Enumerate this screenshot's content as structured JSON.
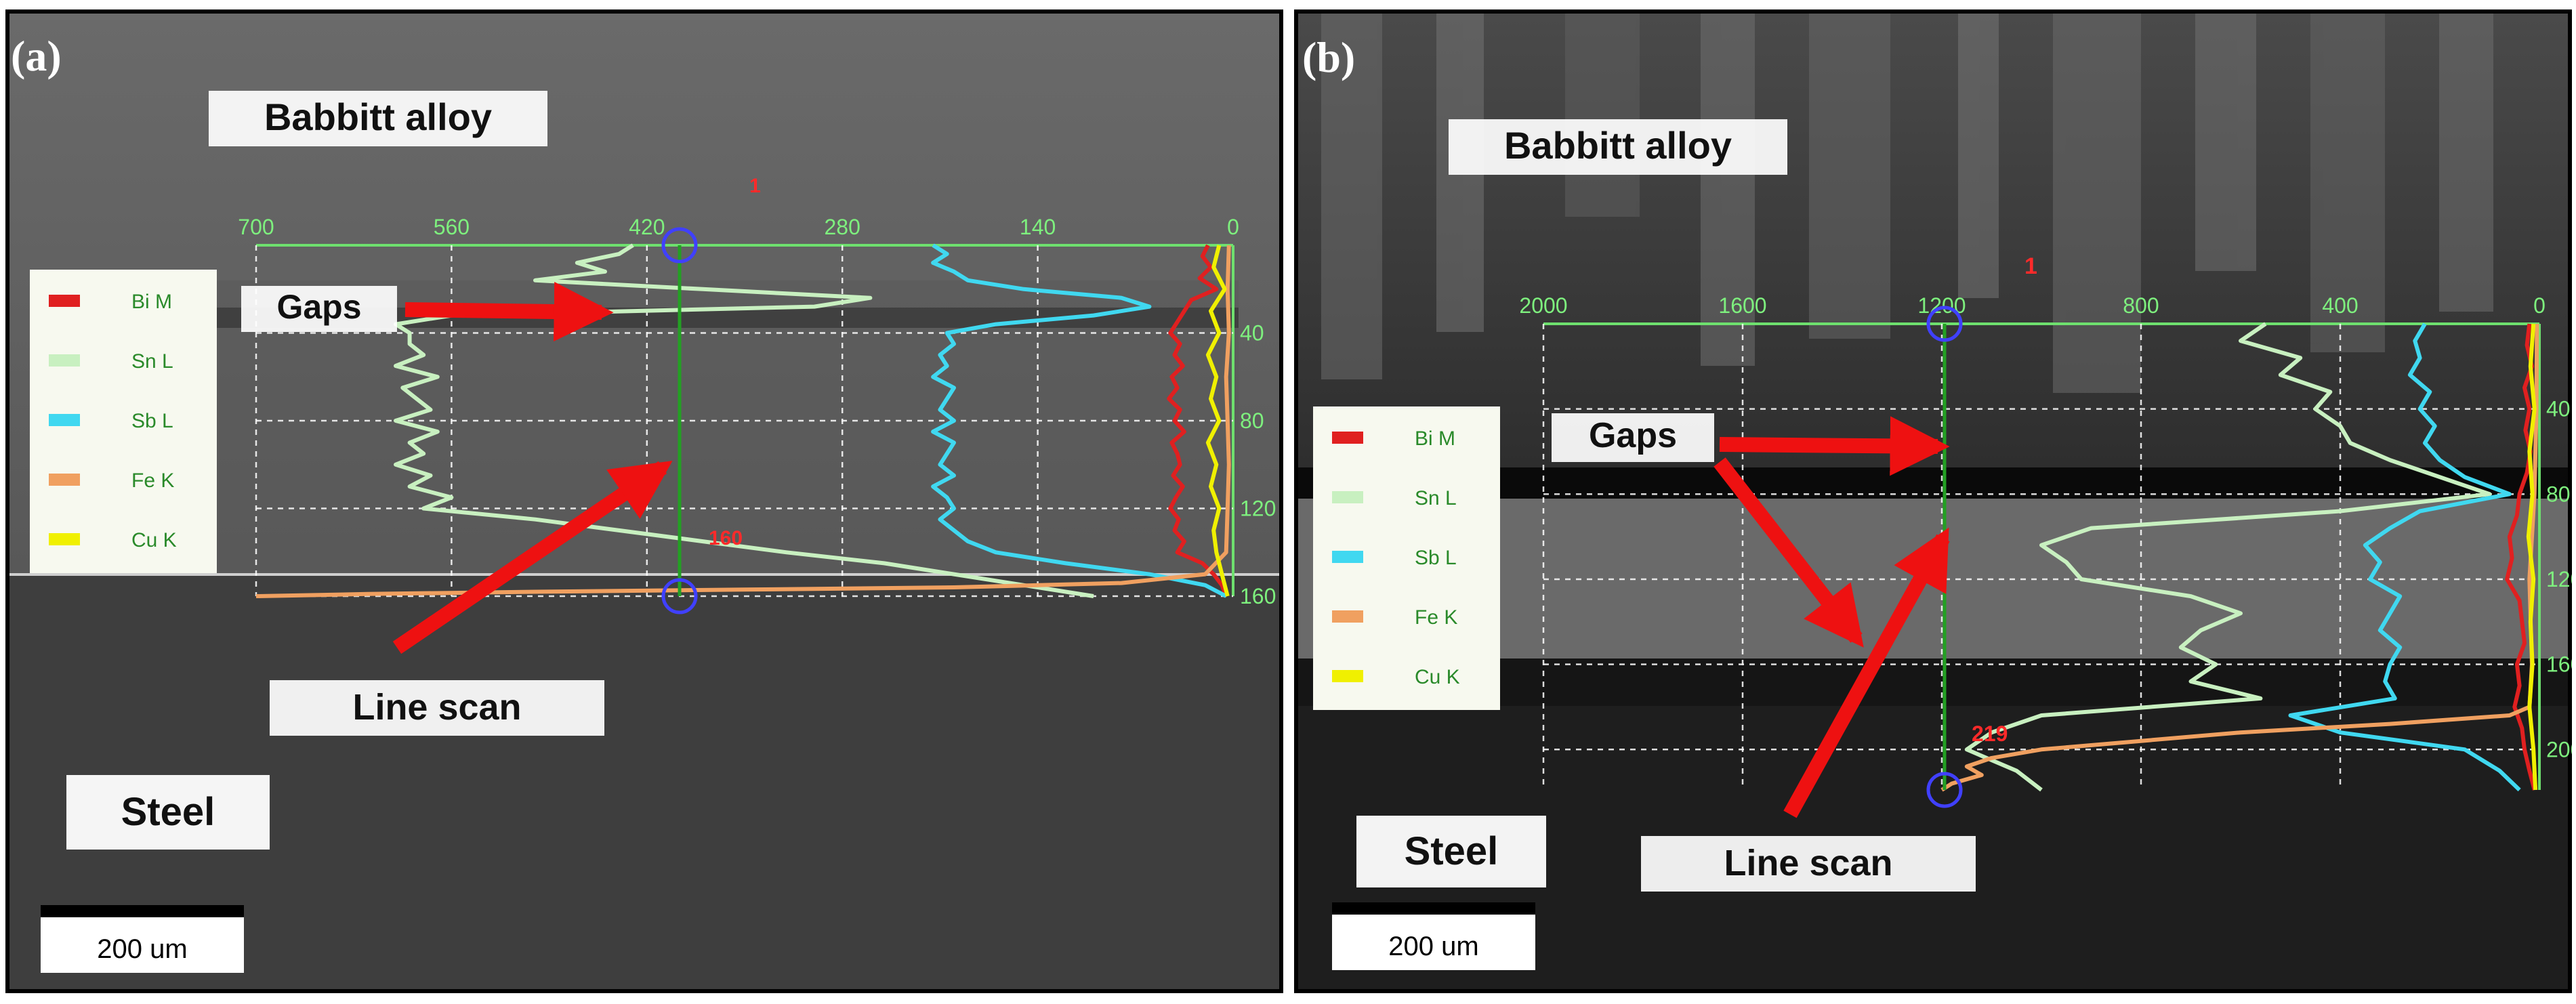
{
  "chart_data": [
    {
      "type": "line",
      "panel_label": "(a)",
      "region_labels": {
        "top": "Babbitt alloy",
        "bottom": "Steel"
      },
      "annotations": {
        "gaps": "Gaps",
        "line_scan": "Line scan"
      },
      "scale_bar": "200 um",
      "scan_marks": {
        "start": "1",
        "end": "160"
      },
      "x_ticks": [
        "700",
        "560",
        "420",
        "280",
        "140",
        "0"
      ],
      "y_ticks": [
        "40",
        "80",
        "120",
        "160"
      ],
      "xlim": [
        0,
        700
      ],
      "ylim": [
        0,
        160
      ],
      "legend": [
        "Bi M",
        "Sn L",
        "Sb L",
        "Fe K",
        "Cu K"
      ],
      "series": [
        {
          "name": "Bi M",
          "color": "#e02020",
          "y": [
            0,
            5,
            10,
            15,
            20,
            25,
            30,
            35,
            40,
            45,
            50,
            55,
            60,
            65,
            70,
            75,
            80,
            85,
            90,
            95,
            100,
            105,
            110,
            115,
            120,
            125,
            130,
            135,
            140,
            145,
            150,
            155,
            160
          ],
          "x": [
            18,
            22,
            16,
            24,
            12,
            30,
            35,
            40,
            45,
            38,
            42,
            36,
            44,
            40,
            46,
            38,
            42,
            35,
            44,
            40,
            38,
            43,
            36,
            41,
            45,
            39,
            42,
            35,
            40,
            22,
            14,
            8,
            5
          ]
        },
        {
          "name": "Sn L",
          "color": "#c8f0c0",
          "y": [
            0,
            4,
            8,
            12,
            16,
            20,
            24,
            28,
            32,
            36,
            40,
            45,
            50,
            55,
            60,
            65,
            70,
            75,
            80,
            85,
            90,
            95,
            100,
            105,
            110,
            115,
            120,
            125,
            130,
            135,
            140,
            145,
            150,
            155,
            160
          ],
          "x": [
            430,
            440,
            470,
            450,
            500,
            380,
            260,
            300,
            560,
            600,
            590,
            590,
            580,
            600,
            570,
            595,
            585,
            575,
            600,
            570,
            590,
            580,
            600,
            575,
            590,
            560,
            580,
            500,
            440,
            380,
            320,
            250,
            200,
            150,
            100
          ]
        },
        {
          "name": "Sb L",
          "color": "#40d8f0",
          "y": [
            0,
            4,
            8,
            12,
            16,
            20,
            24,
            28,
            32,
            36,
            40,
            45,
            50,
            55,
            60,
            65,
            70,
            75,
            80,
            85,
            90,
            95,
            100,
            105,
            110,
            115,
            120,
            125,
            130,
            135,
            140,
            145,
            150,
            155,
            160
          ],
          "x": [
            215,
            205,
            215,
            200,
            190,
            150,
            80,
            60,
            100,
            170,
            205,
            200,
            210,
            205,
            215,
            200,
            205,
            210,
            200,
            215,
            200,
            205,
            210,
            200,
            215,
            205,
            200,
            210,
            200,
            190,
            170,
            120,
            60,
            20,
            5
          ]
        },
        {
          "name": "Fe K",
          "color": "#f0a060",
          "y": [
            0,
            20,
            40,
            60,
            80,
            100,
            120,
            140,
            150,
            154,
            156,
            157,
            158,
            159,
            160
          ],
          "x": [
            3,
            4,
            3,
            5,
            4,
            3,
            4,
            5,
            20,
            80,
            200,
            350,
            500,
            620,
            700
          ]
        },
        {
          "name": "Cu K",
          "color": "#f0f000",
          "y": [
            0,
            10,
            20,
            30,
            40,
            50,
            60,
            70,
            80,
            90,
            100,
            110,
            120,
            130,
            140,
            150,
            160
          ],
          "x": [
            10,
            14,
            6,
            16,
            10,
            18,
            12,
            16,
            10,
            18,
            12,
            16,
            10,
            14,
            12,
            8,
            4
          ]
        }
      ]
    },
    {
      "type": "line",
      "panel_label": "(b)",
      "region_labels": {
        "top": "Babbitt alloy",
        "bottom": "Steel"
      },
      "annotations": {
        "gaps": "Gaps",
        "line_scan": "Line scan"
      },
      "scale_bar": "200 um",
      "scan_marks": {
        "start": "1",
        "end": "219"
      },
      "x_ticks": [
        "2000",
        "1600",
        "1200",
        "800",
        "400",
        "0"
      ],
      "y_ticks": [
        "40",
        "80",
        "120",
        "160",
        "200"
      ],
      "xlim": [
        0,
        2000
      ],
      "ylim": [
        0,
        219
      ],
      "legend": [
        "Bi M",
        "Sn L",
        "Sb L",
        "Fe K",
        "Cu K"
      ],
      "series": [
        {
          "name": "Bi M",
          "color": "#e02020",
          "y": [
            0,
            10,
            20,
            30,
            40,
            50,
            60,
            70,
            80,
            90,
            100,
            110,
            120,
            130,
            140,
            150,
            160,
            170,
            180,
            190,
            200,
            210,
            219
          ],
          "x": [
            20,
            25,
            15,
            30,
            20,
            28,
            18,
            25,
            40,
            45,
            60,
            55,
            65,
            40,
            35,
            30,
            45,
            40,
            50,
            35,
            30,
            20,
            10
          ]
        },
        {
          "name": "Sn L",
          "color": "#c8f0c0",
          "y": [
            0,
            8,
            16,
            24,
            32,
            40,
            48,
            56,
            64,
            72,
            80,
            88,
            96,
            104,
            112,
            120,
            128,
            136,
            144,
            152,
            160,
            168,
            176,
            184,
            192,
            200,
            210,
            219
          ],
          "x": [
            550,
            600,
            480,
            520,
            420,
            450,
            400,
            380,
            300,
            200,
            100,
            400,
            900,
            1000,
            950,
            920,
            700,
            600,
            680,
            720,
            650,
            700,
            560,
            1000,
            1100,
            1150,
            1050,
            1000
          ]
        },
        {
          "name": "Sb L",
          "color": "#40d8f0",
          "y": [
            0,
            8,
            16,
            24,
            32,
            40,
            48,
            56,
            64,
            72,
            80,
            88,
            96,
            104,
            112,
            120,
            128,
            136,
            144,
            152,
            160,
            168,
            176,
            184,
            192,
            200,
            210,
            219
          ],
          "x": [
            230,
            250,
            240,
            260,
            220,
            240,
            210,
            230,
            200,
            150,
            60,
            240,
            300,
            350,
            320,
            340,
            280,
            300,
            320,
            280,
            300,
            310,
            290,
            500,
            400,
            150,
            80,
            40
          ]
        },
        {
          "name": "Fe K",
          "color": "#f0a060",
          "y": [
            0,
            40,
            80,
            120,
            160,
            180,
            184,
            188,
            192,
            196,
            200,
            204,
            208,
            212,
            216,
            219
          ],
          "x": [
            5,
            6,
            10,
            20,
            15,
            20,
            60,
            300,
            600,
            800,
            1000,
            1100,
            1150,
            1120,
            1180,
            1200
          ]
        },
        {
          "name": "Cu K",
          "color": "#f0f000",
          "y": [
            0,
            20,
            40,
            60,
            80,
            100,
            120,
            140,
            160,
            180,
            200,
            219
          ],
          "x": [
            12,
            18,
            10,
            20,
            14,
            22,
            12,
            18,
            14,
            20,
            12,
            8
          ]
        }
      ]
    }
  ]
}
